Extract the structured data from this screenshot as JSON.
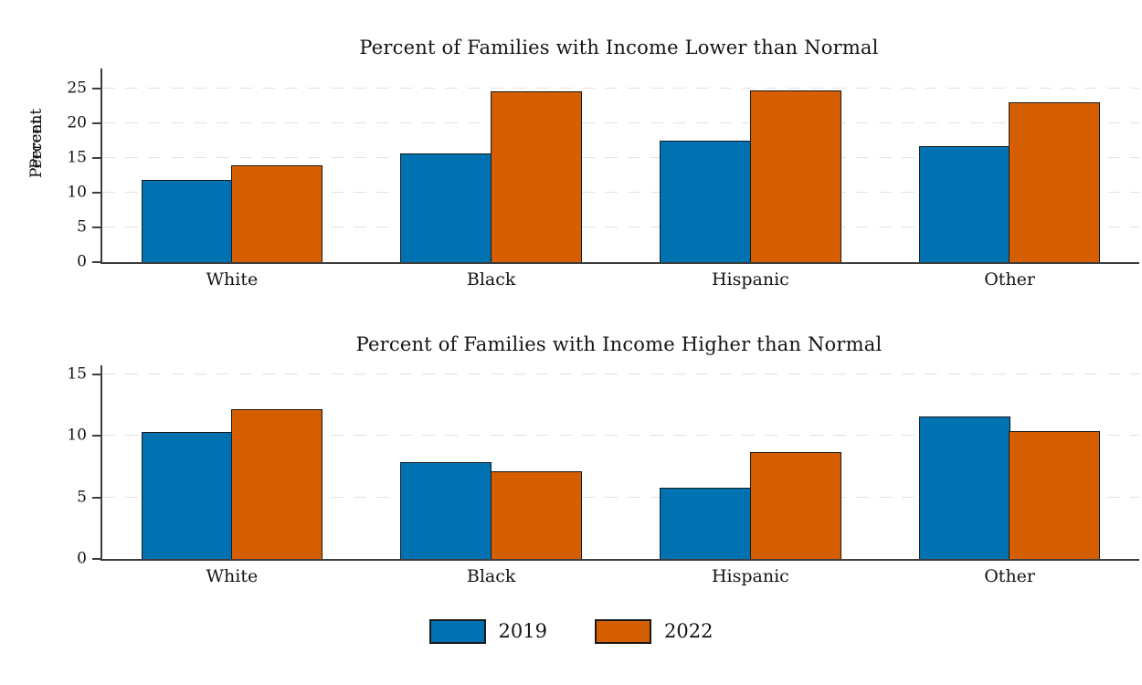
{
  "figure": {
    "background": "#ffffff",
    "axis_color": "#3d3d3d",
    "gridline_color": "#e2e2e2",
    "bar_border_color": "#1a1a1a"
  },
  "colors": {
    "series_2019": "#0072b2",
    "series_2022": "#d55e00"
  },
  "legend": {
    "position": "bottom-center",
    "entries": [
      {
        "label": "2019",
        "color": "#0072b2"
      },
      {
        "label": "2022",
        "color": "#d55e00"
      }
    ]
  },
  "chart_data": [
    {
      "type": "bar",
      "title": "Percent of Families with Income Lower than Normal",
      "xlabel": "",
      "ylabel": "Percent",
      "categories": [
        "White",
        "Black",
        "Hispanic",
        "Other"
      ],
      "series": [
        {
          "name": "2019",
          "color": "#0072b2",
          "values": [
            11.8,
            15.6,
            17.5,
            16.7
          ]
        },
        {
          "name": "2022",
          "color": "#d55e00",
          "values": [
            13.9,
            24.6,
            24.8,
            23.0
          ]
        }
      ],
      "yticks": [
        0,
        5,
        10,
        15,
        20,
        25
      ],
      "ylim": [
        0,
        27.9
      ],
      "grid": "dashed-horizontal",
      "legend_position": "bottom"
    },
    {
      "type": "bar",
      "title": "Percent of Families with Income Higher than Normal",
      "xlabel": "",
      "ylabel": "Percent",
      "categories": [
        "White",
        "Black",
        "Hispanic",
        "Other"
      ],
      "series": [
        {
          "name": "2019",
          "color": "#0072b2",
          "values": [
            10.3,
            7.9,
            5.8,
            11.6
          ]
        },
        {
          "name": "2022",
          "color": "#d55e00",
          "values": [
            12.2,
            7.1,
            8.7,
            10.4
          ]
        }
      ],
      "yticks": [
        0,
        5,
        10,
        15
      ],
      "ylim": [
        0,
        15.75
      ],
      "grid": "dashed-horizontal",
      "legend_position": "bottom"
    }
  ]
}
